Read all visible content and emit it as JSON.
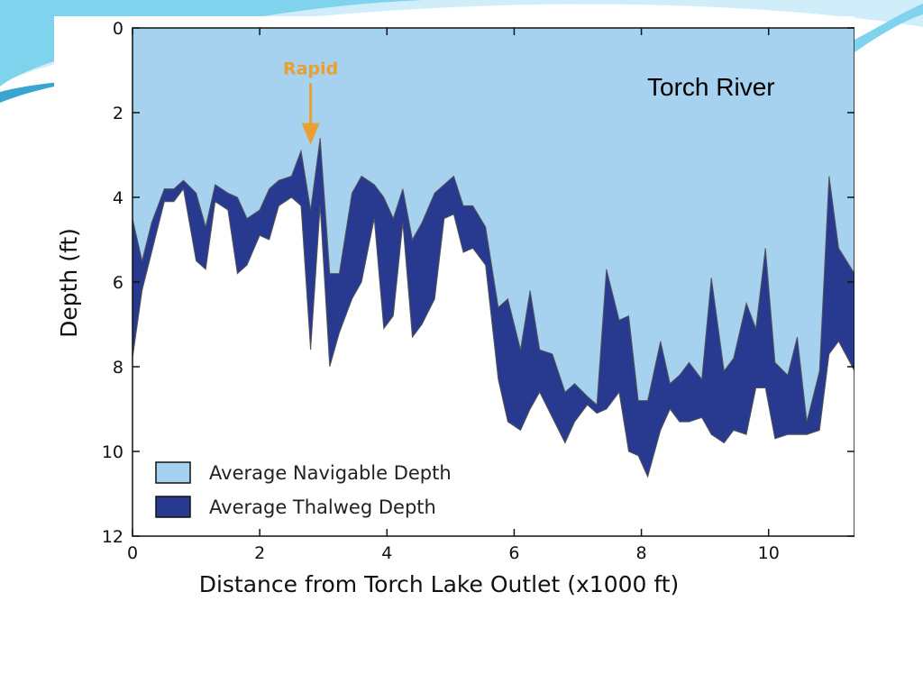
{
  "colors": {
    "navigable": "#a6d1ef",
    "thalweg": "#283a8f",
    "rapid": "#e8a030",
    "swoosh_light": "#cfeefa",
    "swoosh_mid": "#7fd3ec",
    "swoosh_dark": "#3aa6cf"
  },
  "chart_data": {
    "type": "area",
    "title": "Torch River",
    "xlabel": "Distance from Torch Lake Outlet (x1000 ft)",
    "ylabel": "Depth (ft)",
    "xlim": [
      0,
      11.35
    ],
    "ylim": [
      12,
      0
    ],
    "y_inverted": true,
    "xticks": [
      0,
      2,
      4,
      6,
      8,
      10
    ],
    "yticks": [
      0,
      2,
      4,
      6,
      8,
      10,
      12
    ],
    "grid": false,
    "legend_position": "bottom-left",
    "annotation": {
      "text": "Rapid",
      "x": 2.8,
      "y": 2.8
    },
    "x": [
      0,
      0.15,
      0.3,
      0.5,
      0.65,
      0.8,
      1.0,
      1.15,
      1.3,
      1.5,
      1.65,
      1.8,
      2.0,
      2.15,
      2.3,
      2.5,
      2.65,
      2.8,
      2.95,
      3.1,
      3.25,
      3.45,
      3.6,
      3.8,
      3.95,
      4.1,
      4.25,
      4.4,
      4.55,
      4.75,
      4.9,
      5.05,
      5.2,
      5.35,
      5.55,
      5.75,
      5.9,
      6.1,
      6.25,
      6.4,
      6.6,
      6.8,
      6.95,
      7.15,
      7.3,
      7.45,
      7.65,
      7.8,
      7.95,
      8.1,
      8.3,
      8.45,
      8.6,
      8.75,
      8.95,
      9.1,
      9.3,
      9.45,
      9.65,
      9.8,
      9.95,
      10.1,
      10.3,
      10.45,
      10.6,
      10.8,
      10.95,
      11.1,
      11.35
    ],
    "series": [
      {
        "name": "Average Navigable Depth",
        "values": [
          4.5,
          5.5,
          4.6,
          3.8,
          3.8,
          3.6,
          3.9,
          4.7,
          3.7,
          3.9,
          4.0,
          4.5,
          4.3,
          3.8,
          3.6,
          3.5,
          2.9,
          4.3,
          2.6,
          5.8,
          5.8,
          3.9,
          3.5,
          3.7,
          4.0,
          4.5,
          3.8,
          5.0,
          4.6,
          3.9,
          3.7,
          3.5,
          4.2,
          4.2,
          4.7,
          6.6,
          6.4,
          7.6,
          6.2,
          7.6,
          7.7,
          8.6,
          8.4,
          8.7,
          8.9,
          5.7,
          6.9,
          6.8,
          8.8,
          8.8,
          7.4,
          8.4,
          8.2,
          7.9,
          8.3,
          5.9,
          8.1,
          7.8,
          6.5,
          7.1,
          5.2,
          7.9,
          8.2,
          7.3,
          9.3,
          8.1,
          3.5,
          5.2,
          5.8
        ]
      },
      {
        "name": "Average Thalweg Depth",
        "values": [
          7.8,
          6.2,
          5.3,
          4.1,
          4.1,
          3.8,
          5.5,
          5.7,
          4.1,
          4.3,
          5.8,
          5.6,
          4.9,
          5.0,
          4.2,
          4.0,
          4.2,
          7.6,
          4.2,
          8.0,
          7.2,
          6.4,
          6.0,
          4.5,
          7.1,
          6.8,
          4.6,
          7.3,
          7.0,
          6.4,
          4.5,
          4.4,
          5.3,
          5.2,
          5.6,
          8.3,
          9.3,
          9.5,
          9.0,
          8.6,
          9.2,
          9.8,
          9.3,
          8.9,
          9.1,
          9.0,
          8.6,
          10.0,
          10.1,
          10.6,
          9.5,
          9.0,
          9.3,
          9.3,
          9.2,
          9.6,
          9.8,
          9.5,
          9.6,
          8.5,
          8.5,
          9.7,
          9.6,
          9.6,
          9.6,
          9.5,
          7.7,
          7.4,
          8.1
        ]
      }
    ]
  }
}
